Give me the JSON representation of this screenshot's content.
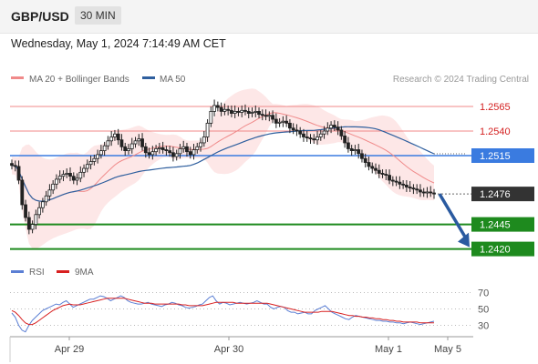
{
  "header": {
    "symbol": "GBP/USD",
    "timeframe": "30 MIN",
    "datetime": "Wednesday, May 1, 2024 7:14:49 AM CET"
  },
  "legend": {
    "ma20": {
      "label": "MA 20 + Bollinger Bands",
      "color": "#f08a8a"
    },
    "ma50": {
      "label": "MA 50",
      "color": "#2f5f9e"
    },
    "credit": "Research © 2024 Trading Central"
  },
  "rsi_legend": {
    "rsi": {
      "label": "RSI",
      "color": "#5b7fd4"
    },
    "ma9": {
      "label": "9MA",
      "color": "#d82020"
    }
  },
  "colors": {
    "up": "#ffffff",
    "down": "#222222",
    "band": "#fde3e3",
    "support": "#1e8a1e",
    "current_level": "#3a7be0",
    "arrow": "#2a5aa0",
    "price_badge": "#333333"
  },
  "chart_data": [
    {
      "type": "candlestick",
      "title": "GBP/USD 30 MIN",
      "x_ticks": [
        "Apr 29",
        "Apr 30",
        "May 1",
        "May 5"
      ],
      "y_visible_range": [
        1.2413,
        1.2595
      ],
      "levels": [
        {
          "value": 1.2565,
          "label": "1.2565",
          "kind": "resistance"
        },
        {
          "value": 1.254,
          "label": "1.2540",
          "kind": "resistance"
        },
        {
          "value": 1.2515,
          "label": "1.2515",
          "kind": "pivot"
        },
        {
          "value": 1.2476,
          "label": "1.2476",
          "kind": "last_price"
        },
        {
          "value": 1.2445,
          "label": "1.2445",
          "kind": "support"
        },
        {
          "value": 1.242,
          "label": "1.2420",
          "kind": "support"
        }
      ],
      "close_series": [
        1.2505,
        1.2504,
        1.249,
        1.2465,
        1.2452,
        1.244,
        1.2445,
        1.2455,
        1.2462,
        1.2468,
        1.2474,
        1.248,
        1.2486,
        1.2491,
        1.2494,
        1.2496,
        1.2497,
        1.2494,
        1.249,
        1.2492,
        1.2498,
        1.2502,
        1.2506,
        1.2509,
        1.2512,
        1.2516,
        1.252,
        1.2525,
        1.253,
        1.2534,
        1.2537,
        1.2531,
        1.2524,
        1.252,
        1.2522,
        1.2527,
        1.253,
        1.2532,
        1.2524,
        1.2518,
        1.2516,
        1.2519,
        1.2522,
        1.2523,
        1.2521,
        1.252,
        1.2518,
        1.2514,
        1.2517,
        1.2522,
        1.2524,
        1.2519,
        1.2516,
        1.2521,
        1.2524,
        1.2528,
        1.2534,
        1.2548,
        1.256,
        1.2566,
        1.2564,
        1.256,
        1.2562,
        1.2561,
        1.2558,
        1.256,
        1.2559,
        1.2561,
        1.256,
        1.2558,
        1.2559,
        1.256,
        1.2557,
        1.2556,
        1.2555,
        1.2556,
        1.2552,
        1.2548,
        1.2549,
        1.255,
        1.2548,
        1.2543,
        1.2541,
        1.254,
        1.2537,
        1.2534,
        1.2533,
        1.2532,
        1.2531,
        1.2534,
        1.2537,
        1.254,
        1.2543,
        1.2546,
        1.2544,
        1.2541,
        1.2535,
        1.2528,
        1.2522,
        1.252,
        1.2521,
        1.2517,
        1.2512,
        1.2508,
        1.2504,
        1.2502,
        1.25,
        1.2497,
        1.2496,
        1.2495,
        1.249,
        1.2489,
        1.2488,
        1.2486,
        1.2485,
        1.2483,
        1.2482,
        1.2481,
        1.248,
        1.2478,
        1.2477,
        1.2478,
        1.2477,
        1.2476
      ],
      "forecast": {
        "from": 1.2476,
        "to": 1.242
      }
    },
    {
      "type": "line",
      "title": "RSI",
      "y_ticks": [
        70,
        50,
        30
      ],
      "series": [
        {
          "name": "RSI",
          "values": [
            45,
            40,
            30,
            24,
            22,
            30,
            36,
            40,
            44,
            48,
            50,
            52,
            54,
            56,
            55,
            58,
            60,
            56,
            52,
            54,
            56,
            58,
            60,
            62,
            62,
            64,
            66,
            65,
            63,
            60,
            62,
            64,
            66,
            64,
            60,
            58,
            57,
            56,
            56,
            57,
            58,
            56,
            55,
            54,
            53,
            55,
            56,
            58,
            57,
            55,
            54,
            52,
            51,
            52,
            53,
            55,
            56,
            60,
            64,
            66,
            60,
            56,
            58,
            57,
            55,
            56,
            57,
            58,
            57,
            56,
            57,
            58,
            60,
            58,
            56,
            56,
            52,
            50,
            52,
            53,
            52,
            48,
            46,
            46,
            44,
            45,
            46,
            44,
            44,
            48,
            50,
            52,
            54,
            50,
            46,
            44,
            42,
            40,
            38,
            37,
            40,
            42,
            41,
            40,
            39,
            38,
            37,
            36,
            36,
            35,
            35,
            34,
            34,
            33,
            33,
            32,
            33,
            34,
            33,
            32,
            31,
            32,
            33,
            34,
            35
          ]
        },
        {
          "name": "9MA",
          "values": [
            48,
            46,
            42,
            37,
            33,
            31,
            31,
            33,
            36,
            39,
            42,
            45,
            48,
            50,
            52,
            54,
            55,
            56,
            55,
            55,
            55,
            56,
            57,
            58,
            59,
            60,
            61,
            62,
            63,
            63,
            63,
            63,
            63,
            63,
            62,
            61,
            60,
            59,
            58,
            57,
            57,
            57,
            56,
            56,
            56,
            56,
            56,
            56,
            56,
            56,
            55,
            55,
            54,
            54,
            54,
            54,
            54,
            55,
            56,
            57,
            58,
            58,
            58,
            58,
            58,
            58,
            57,
            57,
            57,
            57,
            57,
            57,
            57,
            57,
            57,
            57,
            56,
            55,
            54,
            53,
            52,
            51,
            50,
            49,
            48,
            47,
            46,
            46,
            46,
            46,
            46,
            47,
            47,
            47,
            47,
            46,
            45,
            44,
            43,
            42,
            42,
            41,
            41,
            40,
            40,
            39,
            39,
            38,
            38,
            37,
            37,
            36,
            36,
            35,
            35,
            34,
            34,
            34,
            34,
            34,
            33,
            33,
            33,
            33,
            33
          ]
        }
      ]
    }
  ]
}
